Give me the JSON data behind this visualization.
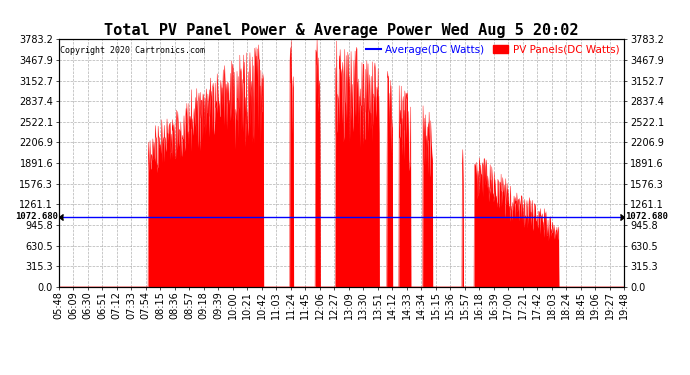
{
  "title": "Total PV Panel Power & Average Power Wed Aug 5 20:02",
  "copyright": "Copyright 2020 Cartronics.com",
  "legend_average": "Average(DC Watts)",
  "legend_pv": "PV Panels(DC Watts)",
  "avg_line_value": 1072.68,
  "avg_label": "1072.680",
  "ymin": 0.0,
  "ymax": 3783.2,
  "yticks": [
    0.0,
    315.3,
    630.5,
    945.8,
    1261.1,
    1576.3,
    1891.6,
    2206.9,
    2522.1,
    2837.4,
    3152.7,
    3467.9,
    3783.2
  ],
  "xtick_labels": [
    "05:48",
    "06:09",
    "06:30",
    "06:51",
    "07:12",
    "07:33",
    "07:54",
    "08:15",
    "08:36",
    "08:57",
    "09:18",
    "09:39",
    "10:00",
    "10:21",
    "10:42",
    "11:03",
    "11:24",
    "11:45",
    "12:06",
    "12:27",
    "13:09",
    "13:30",
    "13:51",
    "14:12",
    "14:33",
    "14:34",
    "15:15",
    "15:36",
    "15:57",
    "16:18",
    "16:39",
    "17:00",
    "17:21",
    "17:42",
    "18:03",
    "18:24",
    "18:45",
    "19:06",
    "19:27",
    "19:48"
  ],
  "fill_color": "#FF0000",
  "avg_line_color": "#0000FF",
  "background_color": "#FFFFFF",
  "grid_color": "#AAAAAA",
  "title_fontsize": 11,
  "tick_fontsize": 7,
  "label_color_avg": "#0000FF",
  "label_color_pv": "#FF0000"
}
